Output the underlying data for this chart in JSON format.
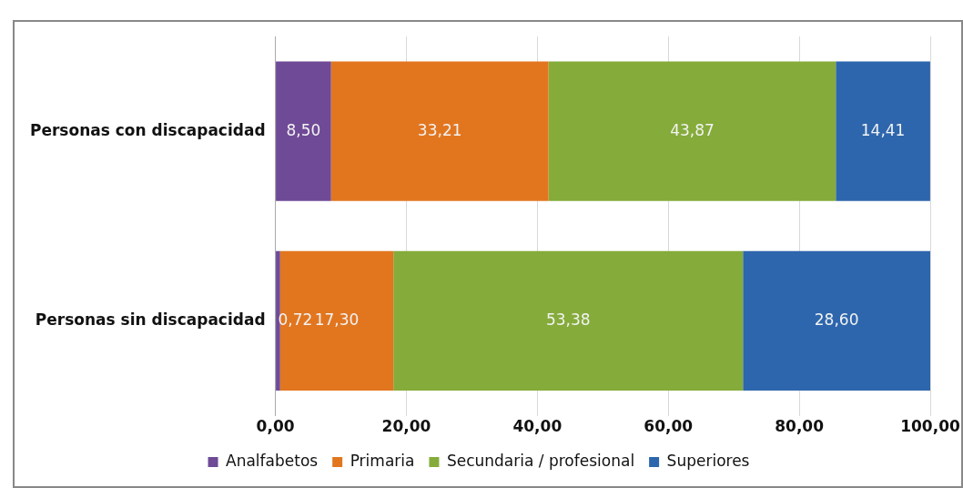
{
  "chart_data": {
    "type": "bar",
    "orientation": "horizontal",
    "stacked": true,
    "categories": [
      "Personas con discapacidad",
      "Personas sin discapacidad"
    ],
    "series": [
      {
        "name": "Analfabetos",
        "color": "#6f4a96",
        "values": [
          8.5,
          0.72
        ],
        "value_labels": [
          "8,50",
          "0,72"
        ]
      },
      {
        "name": "Primaria",
        "color": "#e2761f",
        "values": [
          33.21,
          17.3
        ],
        "value_labels": [
          "33,21",
          "17,30"
        ]
      },
      {
        "name": "Secundaria / profesional",
        "color": "#85ab3a",
        "values": [
          43.87,
          53.38
        ],
        "value_labels": [
          "43,87",
          "53,38"
        ]
      },
      {
        "name": "Superiores",
        "color": "#2d66ad",
        "values": [
          14.41,
          28.6
        ],
        "value_labels": [
          "14,41",
          "28,60"
        ]
      }
    ],
    "xlim": [
      0,
      100
    ],
    "xticks": [
      {
        "value": 0,
        "label": "0,00"
      },
      {
        "value": 20,
        "label": "20,00"
      },
      {
        "value": 40,
        "label": "40,00"
      },
      {
        "value": 60,
        "label": "60,00"
      },
      {
        "value": 80,
        "label": "80,00"
      },
      {
        "value": 100,
        "label": "100,00"
      }
    ],
    "grid": "x",
    "legend": "bottom"
  }
}
